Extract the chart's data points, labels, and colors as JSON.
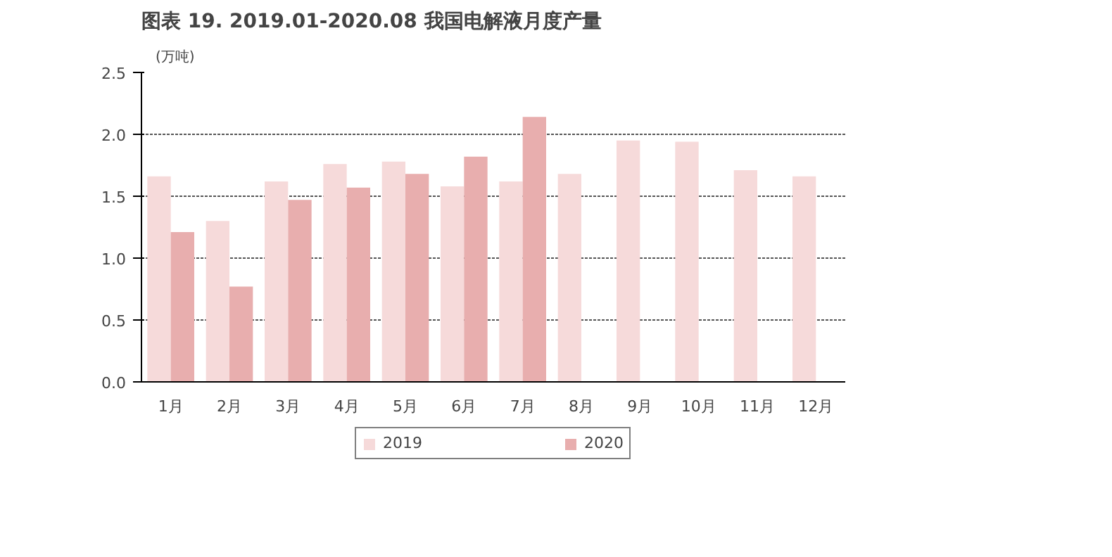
{
  "chart_data": {
    "type": "bar",
    "title": "图表 19. 2019.01-2020.08 我国电解液月度产量",
    "ylabel": "(万吨)",
    "categories": [
      "1月",
      "2月",
      "3月",
      "4月",
      "5月",
      "6月",
      "7月",
      "8月",
      "9月",
      "10月",
      "11月",
      "12月"
    ],
    "series": [
      {
        "name": "2019",
        "color": "#f6dada",
        "values": [
          1.66,
          1.3,
          1.62,
          1.76,
          1.78,
          1.58,
          1.62,
          1.68,
          1.95,
          1.94,
          1.71,
          1.66
        ]
      },
      {
        "name": "2020",
        "color": "#e8aeae",
        "values": [
          1.21,
          0.77,
          1.47,
          1.57,
          1.68,
          1.82,
          2.14,
          null,
          null,
          null,
          null,
          null
        ]
      }
    ],
    "ylim": [
      0,
      2.5
    ],
    "yticks": [
      {
        "value": 0,
        "label": "0.0"
      },
      0.5,
      {
        "value": 1,
        "label": "1.0"
      },
      1.5,
      {
        "value": 2,
        "label": "2.0"
      },
      2.5
    ],
    "grid": "y",
    "legend": "bottom"
  }
}
